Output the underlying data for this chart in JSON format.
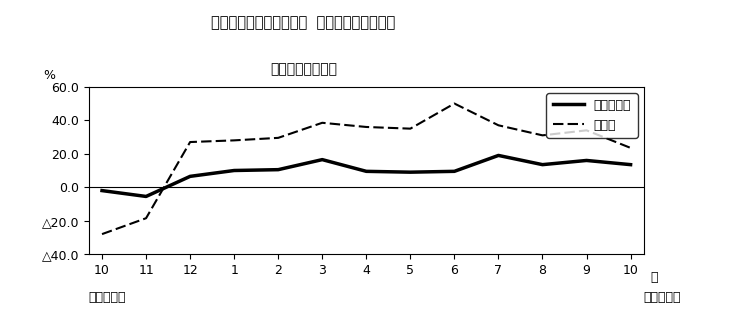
{
  "title_line1": "第２図　所定外労働時間  対前年同月比の推移",
  "title_line2": "（規模５人以上）",
  "x_labels": [
    "10",
    "11",
    "12",
    "1",
    "2",
    "3",
    "4",
    "5",
    "6",
    "7",
    "8",
    "9",
    "10"
  ],
  "x_label_suffix": "月",
  "bottom_label_left": "平成２１年",
  "bottom_label_right": "平成２２年",
  "ylabel": "%",
  "ylim_min": -40.0,
  "ylim_max": 60.0,
  "yticks": [
    60.0,
    40.0,
    20.0,
    0.0,
    -20.0,
    -40.0
  ],
  "ytick_labels": [
    "60.0",
    "40.0",
    "20.0",
    "0.0",
    "△20.0",
    "△40.0"
  ],
  "series_all": {
    "name": "調査産業計",
    "values": [
      -2.0,
      -5.5,
      6.5,
      10.0,
      10.5,
      16.5,
      9.5,
      9.0,
      9.5,
      19.0,
      13.5,
      16.0,
      13.5
    ],
    "color": "#000000",
    "linestyle": "solid",
    "linewidth": 2.5
  },
  "series_mfg": {
    "name": "製造業",
    "values": [
      -28.0,
      -18.5,
      27.0,
      28.0,
      29.5,
      38.5,
      36.0,
      35.0,
      50.0,
      37.0,
      31.0,
      34.0,
      23.5
    ],
    "color": "#000000",
    "linestyle": "dashed",
    "linewidth": 1.5
  },
  "legend_loc": "upper right",
  "background_color": "#ffffff",
  "plot_bg_color": "#ffffff",
  "border_color": "#000000"
}
